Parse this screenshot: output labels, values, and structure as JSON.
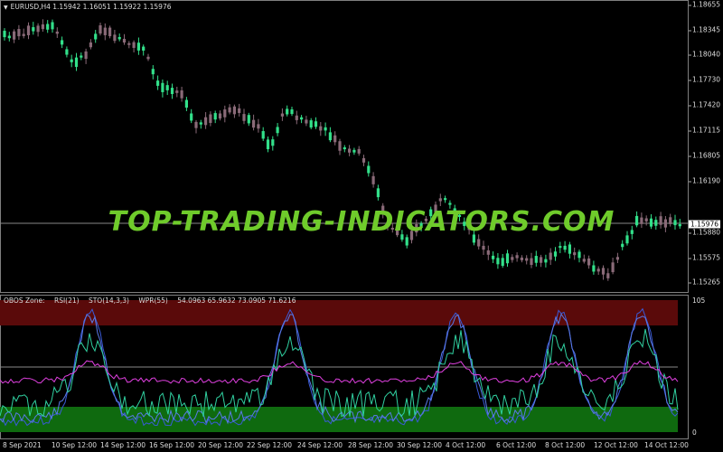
{
  "chart": {
    "symbol_label": "EURUSD,H4",
    "ohlc": "1.15942 1.16051 1.15922 1.15976",
    "watermark": "TOP-TRADING-INDICATORS.COM",
    "current_price": "1.15976",
    "price_ticks": [
      "1.18655",
      "1.18345",
      "1.18040",
      "1.17730",
      "1.17420",
      "1.17115",
      "1.16805",
      "1.16190",
      "1.15880",
      "1.15575",
      "1.15265"
    ],
    "colors": {
      "bull": "#32e08a",
      "bear": "#8a6a78",
      "background": "#000000"
    }
  },
  "indicator": {
    "name": "OBOS Zone:",
    "rsi": "RSI(21)",
    "sto": "STO(14,3,3)",
    "wpr": "WPR(55)",
    "values": "54.0963 65.9632 73.0905 71.6216",
    "scale_top": "105",
    "scale_bottom": "0",
    "colors": {
      "overbought": "#5a0a0a",
      "oversold": "#0f6a0f",
      "rsi": "#e040e0",
      "sto": "#3a5ad8",
      "wpr": "#30d0a0"
    }
  },
  "dates": [
    "8 Sep 2021",
    "10 Sep 12:00",
    "14 Sep 12:00",
    "16 Sep 12:00",
    "20 Sep 12:00",
    "22 Sep 12:00",
    "24 Sep 12:00",
    "28 Sep 12:00",
    "30 Sep 12:00",
    "4 Oct 12:00",
    "6 Oct 12:00",
    "8 Oct 12:00",
    "12 Oct 12:00",
    "14 Oct 12:00"
  ]
}
